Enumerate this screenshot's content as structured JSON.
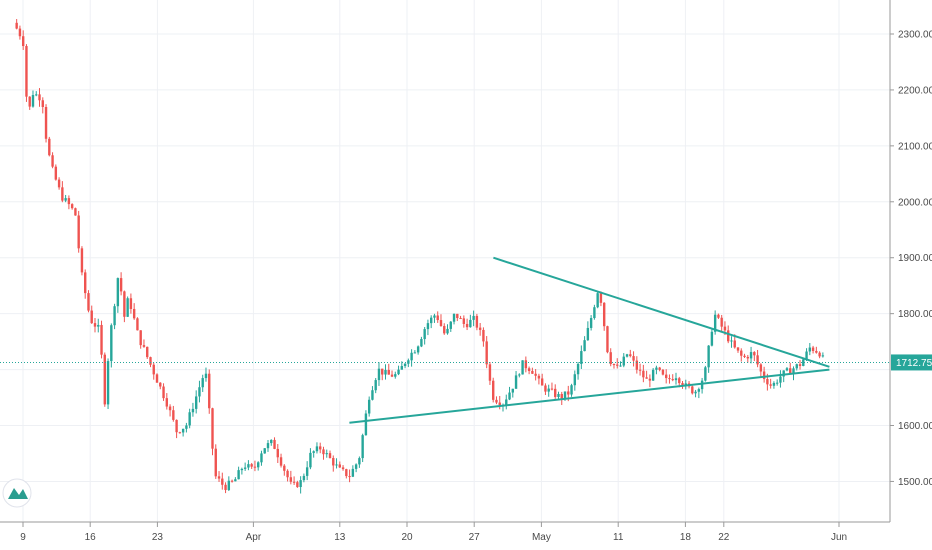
{
  "chart_data": {
    "type": "candlestick",
    "y_axis": {
      "ticks": [
        "2300.00",
        "2200.00",
        "2100.00",
        "2000.00",
        "1900.00",
        "1800.00",
        "1600.00",
        "1500.00"
      ],
      "tick_values": [
        2300,
        2200,
        2100,
        2000,
        1900,
        1800,
        1600,
        1500
      ],
      "range": [
        1435,
        2335
      ]
    },
    "x_axis": {
      "ticks": [
        "9",
        "16",
        "23",
        "Apr",
        "13",
        "20",
        "27",
        "May",
        "11",
        "18",
        "22",
        "Jun"
      ],
      "range_days": [
        -1,
        85
      ]
    },
    "last_price": {
      "value": 1712.75,
      "label": "1712.75"
    },
    "trendlines": [
      {
        "name": "descending-resistance",
        "from": {
          "day": 49,
          "price": 1900
        },
        "to": {
          "day": 84,
          "price": 1705
        }
      },
      {
        "name": "ascending-support",
        "from": {
          "day": 34,
          "price": 1605
        },
        "to": {
          "day": 84,
          "price": 1700
        }
      }
    ],
    "price_path": [
      [
        -1,
        2320
      ],
      [
        0,
        2290
      ],
      [
        0.5,
        2150
      ],
      [
        1,
        2195
      ],
      [
        2,
        2185
      ],
      [
        2.5,
        2100
      ],
      [
        3,
        2060
      ],
      [
        4,
        2010
      ],
      [
        5,
        1990
      ],
      [
        5.5,
        1975
      ],
      [
        6,
        1880
      ],
      [
        7,
        1790
      ],
      [
        8,
        1770
      ],
      [
        8.5,
        1640
      ],
      [
        9,
        1750
      ],
      [
        10,
        1880
      ],
      [
        10.5,
        1790
      ],
      [
        11,
        1830
      ],
      [
        12,
        1760
      ],
      [
        13,
        1720
      ],
      [
        14,
        1680
      ],
      [
        15,
        1640
      ],
      [
        16,
        1590
      ],
      [
        17,
        1600
      ],
      [
        18,
        1650
      ],
      [
        19,
        1700
      ],
      [
        20,
        1510
      ],
      [
        21,
        1490
      ],
      [
        22,
        1500
      ],
      [
        23,
        1530
      ],
      [
        24,
        1520
      ],
      [
        25,
        1560
      ],
      [
        26,
        1570
      ],
      [
        27,
        1530
      ],
      [
        28,
        1490
      ],
      [
        29,
        1500
      ],
      [
        30,
        1550
      ],
      [
        31,
        1560
      ],
      [
        32,
        1540
      ],
      [
        33,
        1520
      ],
      [
        34,
        1510
      ],
      [
        35,
        1540
      ],
      [
        36,
        1650
      ],
      [
        37,
        1700
      ],
      [
        38,
        1690
      ],
      [
        39,
        1690
      ],
      [
        40,
        1720
      ],
      [
        41,
        1740
      ],
      [
        42,
        1780
      ],
      [
        43,
        1800
      ],
      [
        44,
        1760
      ],
      [
        45,
        1800
      ],
      [
        46,
        1780
      ],
      [
        47,
        1790
      ],
      [
        48,
        1750
      ],
      [
        48.5,
        1690
      ],
      [
        49,
        1650
      ],
      [
        50,
        1640
      ],
      [
        51,
        1670
      ],
      [
        52,
        1710
      ],
      [
        53,
        1700
      ],
      [
        54,
        1670
      ],
      [
        55,
        1660
      ],
      [
        56,
        1650
      ],
      [
        57,
        1660
      ],
      [
        58,
        1720
      ],
      [
        59,
        1780
      ],
      [
        60,
        1850
      ],
      [
        61,
        1720
      ],
      [
        62,
        1700
      ],
      [
        63,
        1730
      ],
      [
        64,
        1700
      ],
      [
        65,
        1680
      ],
      [
        66,
        1700
      ],
      [
        67,
        1680
      ],
      [
        68,
        1690
      ],
      [
        69,
        1670
      ],
      [
        70,
        1660
      ],
      [
        71,
        1690
      ],
      [
        72,
        1800
      ],
      [
        73,
        1770
      ],
      [
        74,
        1740
      ],
      [
        75,
        1720
      ],
      [
        76,
        1730
      ],
      [
        77,
        1690
      ],
      [
        78,
        1670
      ],
      [
        79,
        1690
      ],
      [
        80,
        1700
      ],
      [
        81,
        1710
      ],
      [
        82,
        1740
      ],
      [
        83,
        1730
      ],
      [
        83.5,
        1712.75
      ]
    ]
  }
}
